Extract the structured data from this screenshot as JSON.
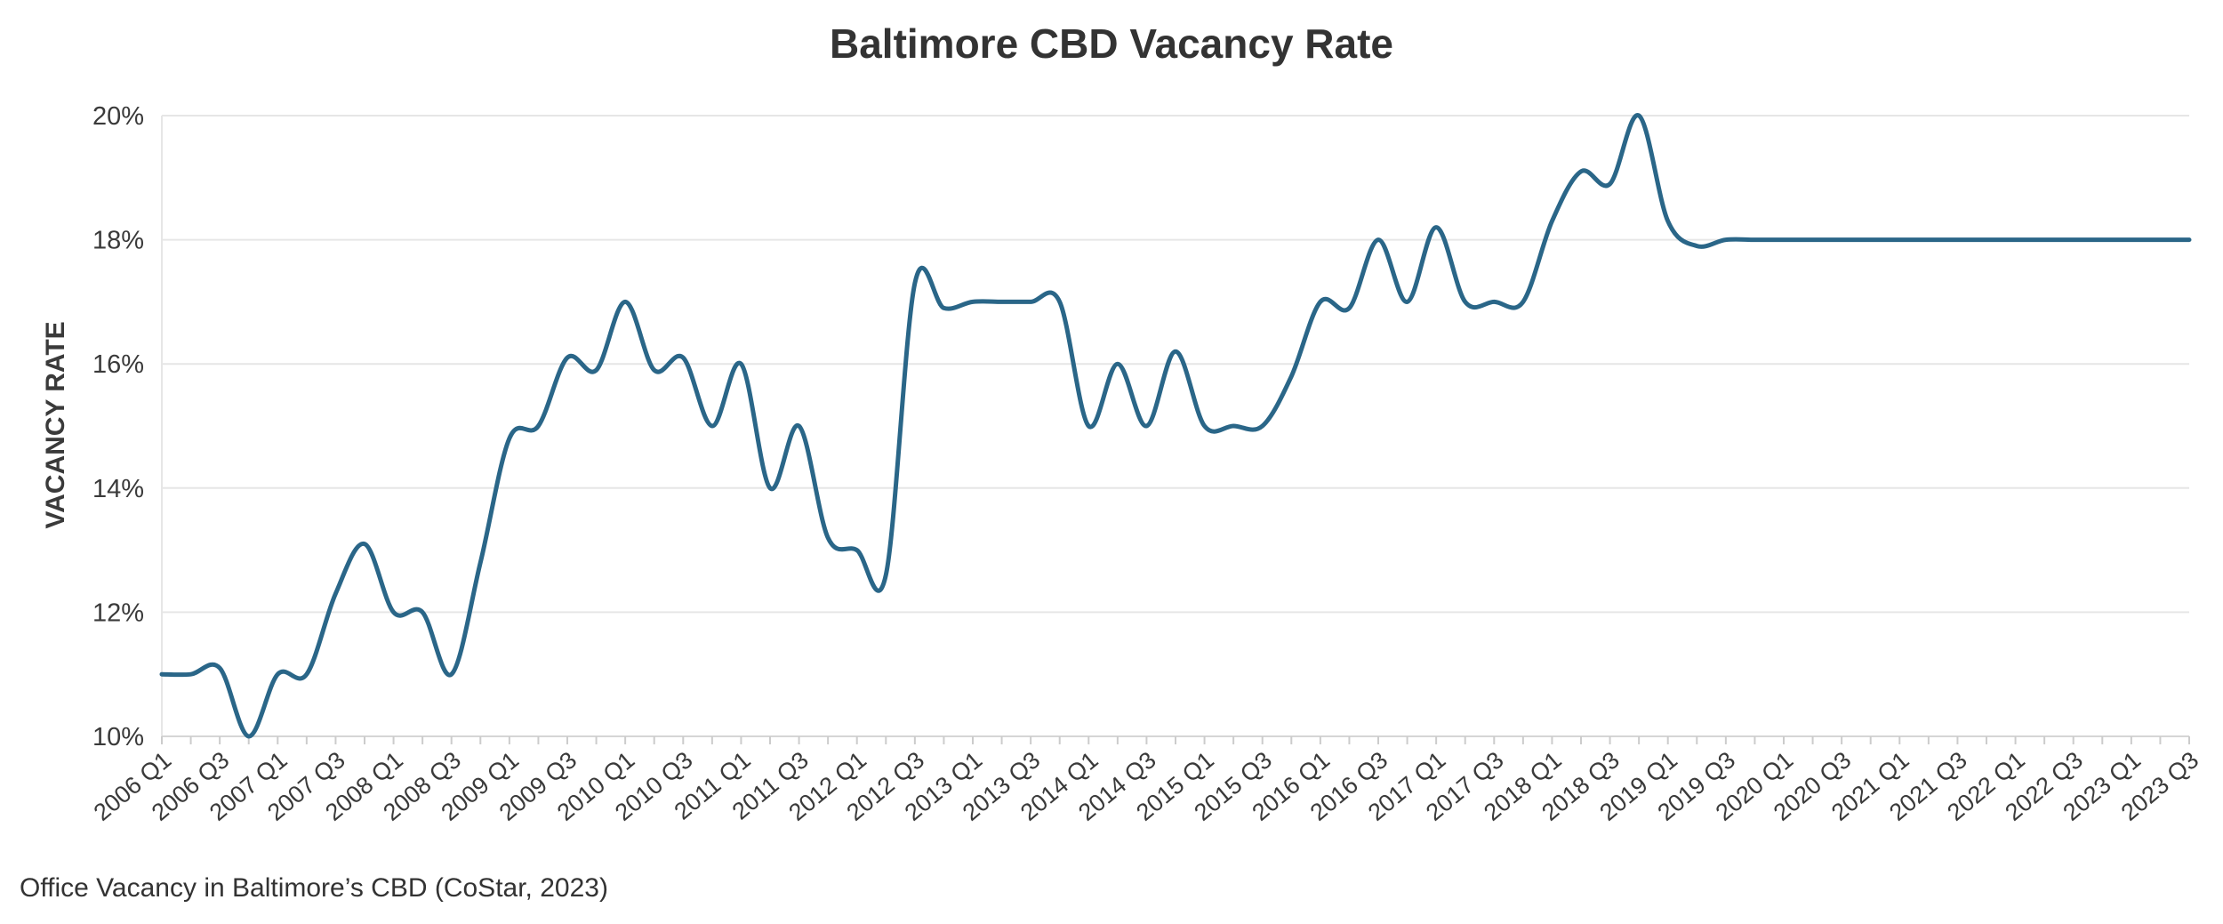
{
  "chart_data": {
    "type": "line",
    "title": "Baltimore CBD Vacancy Rate",
    "ylabel": "VACANCY RATE",
    "xlabel": "",
    "ylim": [
      10,
      20
    ],
    "y_ticks": [
      "10%",
      "12%",
      "14%",
      "16%",
      "18%",
      "20%"
    ],
    "grid": "horizontal",
    "line_color": "#2a6688",
    "x": [
      "2006 Q1",
      "2006 Q2",
      "2006 Q3",
      "2006 Q4",
      "2007 Q1",
      "2007 Q2",
      "2007 Q3",
      "2007 Q4",
      "2008 Q1",
      "2008 Q2",
      "2008 Q3",
      "2008 Q4",
      "2009 Q1",
      "2009 Q2",
      "2009 Q3",
      "2009 Q4",
      "2010 Q1",
      "2010 Q2",
      "2010 Q3",
      "2010 Q4",
      "2011 Q1",
      "2011 Q2",
      "2011 Q3",
      "2011 Q4",
      "2012 Q1",
      "2012 Q2",
      "2012 Q3",
      "2012 Q4",
      "2013 Q1",
      "2013 Q2",
      "2013 Q3",
      "2013 Q4",
      "2014 Q1",
      "2014 Q2",
      "2014 Q3",
      "2014 Q4",
      "2015 Q1",
      "2015 Q2",
      "2015 Q3",
      "2015 Q4",
      "2016 Q1",
      "2016 Q2",
      "2016 Q3",
      "2016 Q4",
      "2017 Q1",
      "2017 Q2",
      "2017 Q3",
      "2017 Q4",
      "2018 Q1",
      "2018 Q2",
      "2018 Q3",
      "2018 Q4",
      "2019 Q1",
      "2019 Q2",
      "2019 Q3",
      "2019 Q4",
      "2020 Q1",
      "2020 Q2",
      "2020 Q3",
      "2020 Q4",
      "2021 Q1",
      "2021 Q2",
      "2021 Q3",
      "2021 Q4",
      "2022 Q1",
      "2022 Q2",
      "2022 Q3",
      "2022 Q4",
      "2023 Q1",
      "2023 Q2",
      "2023 Q3"
    ],
    "x_tick_labels": [
      "2006 Q1",
      "2006 Q3",
      "2007 Q1",
      "2007 Q3",
      "2008 Q1",
      "2008 Q3",
      "2009 Q1",
      "2009 Q3",
      "2010 Q1",
      "2010 Q3",
      "2011 Q1",
      "2011 Q3",
      "2012 Q1",
      "2012 Q3",
      "2013 Q1",
      "2013 Q3",
      "2014 Q1",
      "2014 Q3",
      "2015 Q1",
      "2015 Q3",
      "2016 Q1",
      "2016 Q3",
      "2017 Q1",
      "2017 Q3",
      "2018 Q1",
      "2018 Q3",
      "2019 Q1",
      "2019 Q3",
      "2020 Q1",
      "2020 Q3",
      "2021 Q1",
      "2021 Q3",
      "2022 Q1",
      "2022 Q3",
      "2023 Q1",
      "2023 Q3"
    ],
    "values": [
      11.0,
      11.0,
      11.1,
      10.0,
      11.0,
      11.0,
      12.3,
      13.1,
      12.0,
      12.0,
      11.0,
      12.8,
      14.8,
      15.0,
      16.1,
      15.9,
      17.0,
      15.9,
      16.1,
      15.0,
      16.0,
      14.0,
      15.0,
      13.2,
      13.0,
      12.6,
      17.3,
      16.9,
      17.0,
      17.0,
      17.0,
      17.0,
      15.0,
      16.0,
      15.0,
      16.2,
      15.0,
      15.0,
      15.0,
      15.8,
      17.0,
      16.9,
      18.0,
      17.0,
      18.2,
      17.0,
      17.0,
      17.0,
      18.3,
      19.1,
      18.9,
      20.0,
      18.3,
      17.9,
      18.0,
      18.0,
      18.0,
      18.0,
      18.0,
      18.0,
      18.0,
      18.0,
      18.0,
      18.0,
      18.0,
      18.0,
      18.0,
      18.0,
      18.0,
      18.0,
      18.0
    ]
  },
  "footer": "Office Vacancy in Baltimore’s CBD (CoStar, 2023)"
}
